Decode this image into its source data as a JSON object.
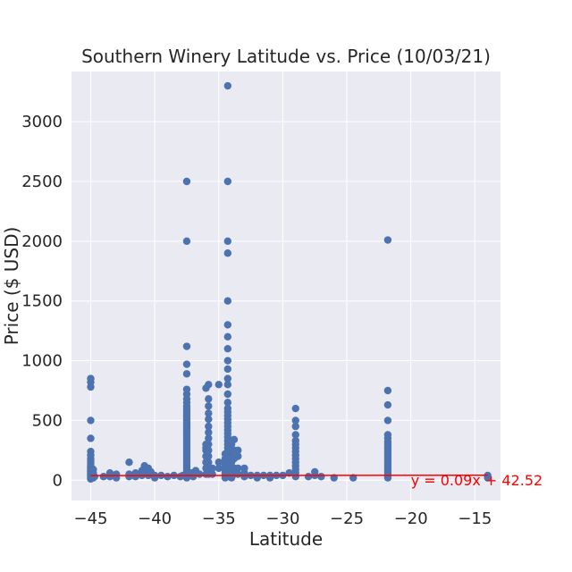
{
  "chart_data": {
    "type": "scatter",
    "title": "Southern Winery Latitude vs. Price (10/03/21)",
    "xlabel": "Latitude",
    "ylabel": "Price ($ USD)",
    "xlim": [
      -46.5,
      -13
    ],
    "ylim": [
      -170,
      3420
    ],
    "xticks": [
      -45,
      -40,
      -35,
      -30,
      -25,
      -20,
      -15
    ],
    "yticks": [
      0,
      500,
      1000,
      1500,
      2000,
      2500,
      3000
    ],
    "grid": true,
    "colors": {
      "background": "#eaeaf2",
      "grid": "#ffffff",
      "points": "#4c72b0",
      "regression": "#ff0000"
    },
    "regression": {
      "slope": 0.09,
      "intercept": 42.52,
      "x_range": [
        -45,
        -14
      ],
      "label": "y = 0.09x + 42.52",
      "label_position": [
        -20,
        -5
      ]
    },
    "points": [
      [
        -45,
        850
      ],
      [
        -45,
        820
      ],
      [
        -45,
        780
      ],
      [
        -45,
        500
      ],
      [
        -45,
        350
      ],
      [
        -45,
        240
      ],
      [
        -45,
        210
      ],
      [
        -45,
        180
      ],
      [
        -45,
        160
      ],
      [
        -45,
        140
      ],
      [
        -45,
        120
      ],
      [
        -45,
        110
      ],
      [
        -45,
        100
      ],
      [
        -45,
        90
      ],
      [
        -45,
        80
      ],
      [
        -45,
        70
      ],
      [
        -45,
        60
      ],
      [
        -45,
        50
      ],
      [
        -45,
        40
      ],
      [
        -45,
        30
      ],
      [
        -45,
        20
      ],
      [
        -45,
        10
      ],
      [
        -44.8,
        90
      ],
      [
        -44.8,
        60
      ],
      [
        -44.8,
        40
      ],
      [
        -44.8,
        20
      ],
      [
        -44.7,
        30
      ],
      [
        -44,
        30
      ],
      [
        -43.5,
        60
      ],
      [
        -43.5,
        30
      ],
      [
        -43,
        50
      ],
      [
        -43,
        20
      ],
      [
        -42,
        150
      ],
      [
        -42,
        50
      ],
      [
        -42,
        30
      ],
      [
        -41.5,
        60
      ],
      [
        -41.5,
        30
      ],
      [
        -41,
        80
      ],
      [
        -41,
        40
      ],
      [
        -40.8,
        120
      ],
      [
        -40.8,
        80
      ],
      [
        -40.7,
        60
      ],
      [
        -40.5,
        100
      ],
      [
        -40.5,
        40
      ],
      [
        -40.3,
        70
      ],
      [
        -40,
        40
      ],
      [
        -40,
        20
      ],
      [
        -39.5,
        40
      ],
      [
        -39,
        30
      ],
      [
        -38.5,
        40
      ],
      [
        -38,
        30
      ],
      [
        -37.8,
        40
      ],
      [
        -37.5,
        2500
      ],
      [
        -37.5,
        2000
      ],
      [
        -37.5,
        1120
      ],
      [
        -37.5,
        970
      ],
      [
        -37.5,
        890
      ],
      [
        -37.5,
        760
      ],
      [
        -37.5,
        720
      ],
      [
        -37.5,
        680
      ],
      [
        -37.5,
        650
      ],
      [
        -37.5,
        620
      ],
      [
        -37.5,
        600
      ],
      [
        -37.5,
        580
      ],
      [
        -37.5,
        560
      ],
      [
        -37.5,
        540
      ],
      [
        -37.5,
        520
      ],
      [
        -37.5,
        500
      ],
      [
        -37.5,
        480
      ],
      [
        -37.5,
        460
      ],
      [
        -37.5,
        440
      ],
      [
        -37.5,
        420
      ],
      [
        -37.5,
        400
      ],
      [
        -37.5,
        380
      ],
      [
        -37.5,
        360
      ],
      [
        -37.5,
        340
      ],
      [
        -37.5,
        320
      ],
      [
        -37.5,
        300
      ],
      [
        -37.5,
        280
      ],
      [
        -37.5,
        260
      ],
      [
        -37.5,
        240
      ],
      [
        -37.5,
        220
      ],
      [
        -37.5,
        200
      ],
      [
        -37.5,
        180
      ],
      [
        -37.5,
        160
      ],
      [
        -37.5,
        140
      ],
      [
        -37.5,
        120
      ],
      [
        -37.5,
        100
      ],
      [
        -37.5,
        80
      ],
      [
        -37.5,
        60
      ],
      [
        -37.5,
        40
      ],
      [
        -37.5,
        20
      ],
      [
        -37.2,
        60
      ],
      [
        -37,
        60
      ],
      [
        -37,
        30
      ],
      [
        -36.8,
        80
      ],
      [
        -36.5,
        50
      ],
      [
        -36,
        770
      ],
      [
        -36,
        300
      ],
      [
        -36,
        270
      ],
      [
        -36,
        250
      ],
      [
        -36,
        200
      ],
      [
        -36,
        150
      ],
      [
        -36,
        100
      ],
      [
        -36,
        50
      ],
      [
        -35.8,
        800
      ],
      [
        -35.8,
        680
      ],
      [
        -35.8,
        620
      ],
      [
        -35.8,
        560
      ],
      [
        -35.8,
        510
      ],
      [
        -35.8,
        450
      ],
      [
        -35.8,
        400
      ],
      [
        -35.8,
        350
      ],
      [
        -35.8,
        300
      ],
      [
        -35.8,
        250
      ],
      [
        -35.8,
        200
      ],
      [
        -35.8,
        150
      ],
      [
        -35.8,
        100
      ],
      [
        -35.8,
        50
      ],
      [
        -35.5,
        100
      ],
      [
        -35.5,
        50
      ],
      [
        -35,
        800
      ],
      [
        -35,
        150
      ],
      [
        -35,
        100
      ],
      [
        -34.5,
        220
      ],
      [
        -34.5,
        180
      ],
      [
        -34.5,
        150
      ],
      [
        -34.5,
        120
      ],
      [
        -34.5,
        100
      ],
      [
        -34.5,
        80
      ],
      [
        -34.5,
        60
      ],
      [
        -34.5,
        40
      ],
      [
        -34.5,
        20
      ],
      [
        -34.3,
        3300
      ],
      [
        -34.3,
        2500
      ],
      [
        -34.3,
        2000
      ],
      [
        -34.3,
        1900
      ],
      [
        -34.3,
        1500
      ],
      [
        -34.3,
        1300
      ],
      [
        -34.3,
        1200
      ],
      [
        -34.3,
        1100
      ],
      [
        -34.3,
        1000
      ],
      [
        -34.3,
        930
      ],
      [
        -34.3,
        850
      ],
      [
        -34.3,
        800
      ],
      [
        -34.3,
        720
      ],
      [
        -34.3,
        650
      ],
      [
        -34.3,
        600
      ],
      [
        -34.3,
        570
      ],
      [
        -34.3,
        540
      ],
      [
        -34.3,
        510
      ],
      [
        -34.3,
        480
      ],
      [
        -34.3,
        450
      ],
      [
        -34.3,
        420
      ],
      [
        -34.3,
        390
      ],
      [
        -34.3,
        360
      ],
      [
        -34.3,
        330
      ],
      [
        -34.3,
        300
      ],
      [
        -34.3,
        270
      ],
      [
        -34.3,
        240
      ],
      [
        -34.3,
        210
      ],
      [
        -34.3,
        180
      ],
      [
        -34.3,
        150
      ],
      [
        -34.3,
        120
      ],
      [
        -34.3,
        90
      ],
      [
        -34.3,
        60
      ],
      [
        -34.3,
        30
      ],
      [
        -34,
        300
      ],
      [
        -34,
        250
      ],
      [
        -34,
        200
      ],
      [
        -34,
        150
      ],
      [
        -34,
        100
      ],
      [
        -34,
        50
      ],
      [
        -34,
        20
      ],
      [
        -33.8,
        340
      ],
      [
        -33.8,
        250
      ],
      [
        -33.8,
        180
      ],
      [
        -33.8,
        100
      ],
      [
        -33.8,
        50
      ],
      [
        -33.5,
        250
      ],
      [
        -33.5,
        200
      ],
      [
        -33.5,
        100
      ],
      [
        -33.5,
        50
      ],
      [
        -33,
        100
      ],
      [
        -33,
        60
      ],
      [
        -33,
        30
      ],
      [
        -32.5,
        40
      ],
      [
        -32,
        40
      ],
      [
        -32,
        20
      ],
      [
        -31.5,
        40
      ],
      [
        -31,
        40
      ],
      [
        -31,
        20
      ],
      [
        -30.5,
        40
      ],
      [
        -30,
        40
      ],
      [
        -29.5,
        60
      ],
      [
        -29,
        600
      ],
      [
        -29,
        500
      ],
      [
        -29,
        450
      ],
      [
        -29,
        380
      ],
      [
        -29,
        330
      ],
      [
        -29,
        300
      ],
      [
        -29,
        270
      ],
      [
        -29,
        240
      ],
      [
        -29,
        210
      ],
      [
        -29,
        180
      ],
      [
        -29,
        150
      ],
      [
        -29,
        120
      ],
      [
        -29,
        90
      ],
      [
        -29,
        60
      ],
      [
        -29,
        30
      ],
      [
        -28,
        30
      ],
      [
        -27.5,
        70
      ],
      [
        -27.5,
        40
      ],
      [
        -27,
        30
      ],
      [
        -26,
        20
      ],
      [
        -24.5,
        20
      ],
      [
        -21.8,
        2010
      ],
      [
        -21.8,
        750
      ],
      [
        -21.8,
        630
      ],
      [
        -21.8,
        500
      ],
      [
        -21.8,
        380
      ],
      [
        -21.8,
        350
      ],
      [
        -21.8,
        320
      ],
      [
        -21.8,
        300
      ],
      [
        -21.8,
        280
      ],
      [
        -21.8,
        260
      ],
      [
        -21.8,
        240
      ],
      [
        -21.8,
        220
      ],
      [
        -21.8,
        200
      ],
      [
        -21.8,
        180
      ],
      [
        -21.8,
        160
      ],
      [
        -21.8,
        140
      ],
      [
        -21.8,
        120
      ],
      [
        -21.8,
        100
      ],
      [
        -21.8,
        80
      ],
      [
        -21.8,
        60
      ],
      [
        -21.8,
        40
      ],
      [
        -21.8,
        20
      ],
      [
        -14,
        40
      ],
      [
        -14,
        20
      ]
    ]
  }
}
